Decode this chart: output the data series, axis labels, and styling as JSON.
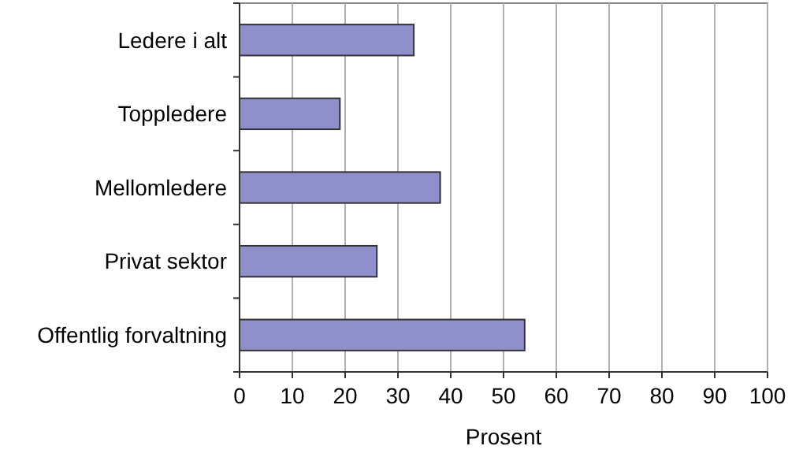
{
  "chart_data": {
    "type": "bar",
    "orientation": "horizontal",
    "xlabel": "Prosent",
    "categories": [
      "Ledere i alt",
      "Toppledere",
      "Mellomledere",
      "Privat sektor",
      "Offentlig forvaltning"
    ],
    "values": [
      33,
      19,
      38,
      26,
      54
    ],
    "color": "#8f8fcc",
    "xlim": [
      0,
      100
    ],
    "xticks": [
      0,
      10,
      20,
      30,
      40,
      50,
      60,
      70,
      80,
      90,
      100
    ],
    "grid": "x"
  }
}
